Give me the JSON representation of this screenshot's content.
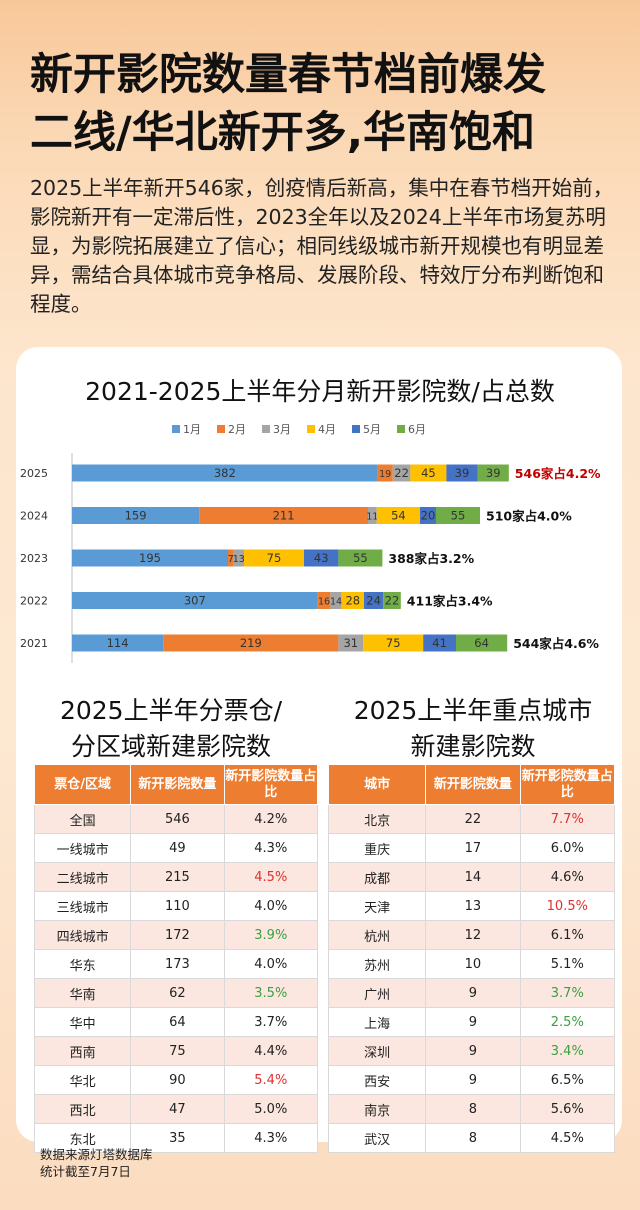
{
  "headline": {
    "line1": "新开影院数量春节档前爆发",
    "line2": "二线/华北新开多,华南饱和"
  },
  "intro": "2025上半年新开546家，创疫情后新高，集中在春节档开始前，影院新开有一定滞后性，2023全年以及2024上半年市场复苏明显，为影院拓展建立了信心；相同线级城市新开规模也有明显差异，需结合具体城市竞争格局、发展阶段、特效厅分布判断饱和程度。",
  "chart_data": {
    "type": "bar",
    "orientation": "horizontal",
    "stacked": true,
    "title": "2021-2025上半年分月新开影院数/占总数",
    "categories": [
      "2025",
      "2024",
      "2023",
      "2022",
      "2021"
    ],
    "series": [
      {
        "name": "1月",
        "color": "#5b9bd5",
        "values": [
          382,
          159,
          195,
          307,
          114
        ]
      },
      {
        "name": "2月",
        "color": "#ed7d31",
        "values": [
          19,
          211,
          7,
          16,
          219
        ]
      },
      {
        "name": "3月",
        "color": "#a5a5a5",
        "values": [
          22,
          11,
          13,
          14,
          31
        ]
      },
      {
        "name": "4月",
        "color": "#ffc000",
        "values": [
          45,
          54,
          75,
          28,
          75
        ]
      },
      {
        "name": "5月",
        "color": "#4472c4",
        "values": [
          39,
          20,
          43,
          24,
          41
        ]
      },
      {
        "name": "6月",
        "color": "#70ad47",
        "values": [
          39,
          55,
          55,
          22,
          64
        ]
      }
    ],
    "totals": [
      "546家占4.2%",
      "510家占4.0%",
      "388家占3.2%",
      "411家占3.4%",
      "544家占4.6%"
    ],
    "totals_colors": [
      "#c00000",
      "#111111",
      "#111111",
      "#111111",
      "#111111"
    ],
    "legend_position": "top",
    "grid": false
  },
  "table_left": {
    "title_line1": "2025上半年分票仓/",
    "title_line2": "分区域新建影院数",
    "headers": [
      "票仓/区域",
      "新开影院数量",
      "新开影院数量占比"
    ],
    "rows": [
      {
        "name": "全国",
        "count": "546",
        "pct": "4.2%",
        "color": "#222222"
      },
      {
        "name": "一线城市",
        "count": "49",
        "pct": "4.3%",
        "color": "#222222"
      },
      {
        "name": "二线城市",
        "count": "215",
        "pct": "4.5%",
        "color": "#e03030"
      },
      {
        "name": "三线城市",
        "count": "110",
        "pct": "4.0%",
        "color": "#222222"
      },
      {
        "name": "四线城市",
        "count": "172",
        "pct": "3.9%",
        "color": "#3aa040"
      },
      {
        "name": "华东",
        "count": "173",
        "pct": "4.0%",
        "color": "#222222"
      },
      {
        "name": "华南",
        "count": "62",
        "pct": "3.5%",
        "color": "#3aa040"
      },
      {
        "name": "华中",
        "count": "64",
        "pct": "3.7%",
        "color": "#222222"
      },
      {
        "name": "西南",
        "count": "75",
        "pct": "4.4%",
        "color": "#222222"
      },
      {
        "name": "华北",
        "count": "90",
        "pct": "5.4%",
        "color": "#e03030"
      },
      {
        "name": "西北",
        "count": "47",
        "pct": "5.0%",
        "color": "#222222"
      },
      {
        "name": "东北",
        "count": "35",
        "pct": "4.3%",
        "color": "#222222"
      }
    ]
  },
  "table_right": {
    "title_line1": "2025上半年重点城市",
    "title_line2": "新建影院数",
    "headers": [
      "城市",
      "新开影院数量",
      "新开影院数量占比"
    ],
    "rows": [
      {
        "name": "北京",
        "count": "22",
        "pct": "7.7%",
        "color": "#e03030"
      },
      {
        "name": "重庆",
        "count": "17",
        "pct": "6.0%",
        "color": "#222222"
      },
      {
        "name": "成都",
        "count": "14",
        "pct": "4.6%",
        "color": "#222222"
      },
      {
        "name": "天津",
        "count": "13",
        "pct": "10.5%",
        "color": "#e03030"
      },
      {
        "name": "杭州",
        "count": "12",
        "pct": "6.1%",
        "color": "#222222"
      },
      {
        "name": "苏州",
        "count": "10",
        "pct": "5.1%",
        "color": "#222222"
      },
      {
        "name": "广州",
        "count": "9",
        "pct": "3.7%",
        "color": "#3aa040"
      },
      {
        "name": "上海",
        "count": "9",
        "pct": "2.5%",
        "color": "#3aa040"
      },
      {
        "name": "深圳",
        "count": "9",
        "pct": "3.4%",
        "color": "#3aa040"
      },
      {
        "name": "西安",
        "count": "9",
        "pct": "6.5%",
        "color": "#222222"
      },
      {
        "name": "南京",
        "count": "8",
        "pct": "5.6%",
        "color": "#222222"
      },
      {
        "name": "武汉",
        "count": "8",
        "pct": "4.5%",
        "color": "#222222"
      }
    ]
  },
  "footnote": {
    "line1": "数据来源灯塔数据库",
    "line2": "统计截至7月7日"
  }
}
